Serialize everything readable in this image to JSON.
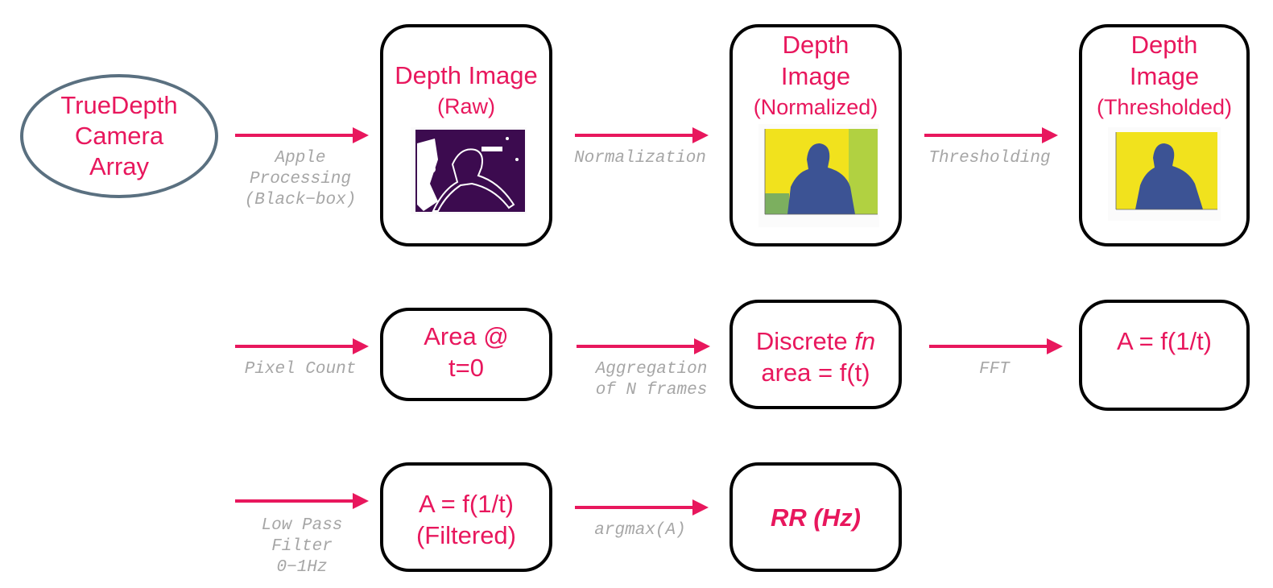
{
  "source": {
    "lines": [
      "TrueDepth",
      "Camera",
      "Array"
    ]
  },
  "nodes": {
    "depth_raw": {
      "lines": [
        "Depth Image",
        "(Raw)"
      ]
    },
    "depth_norm": {
      "lines": [
        "Depth",
        "Image",
        "(Normalized)"
      ]
    },
    "depth_thresh": {
      "lines": [
        "Depth",
        "Image",
        "(Thresholded)"
      ]
    },
    "area_t0": {
      "lines": [
        "Area @",
        "t=0"
      ]
    },
    "discrete_fn": {
      "line1_prefix": "Discrete ",
      "line1_italic": "fn",
      "line2": "area = f(t)"
    },
    "freq_a": {
      "lines": [
        "A = f(1/t)"
      ]
    },
    "freq_filtered": {
      "lines": [
        "A = f(1/t)",
        "(Filtered)"
      ]
    },
    "rr": {
      "lines": [
        "RR (Hz)"
      ]
    }
  },
  "edges": {
    "apple": [
      "Apple",
      "Processing",
      "(Black−box)"
    ],
    "normalization": [
      "Normalization"
    ],
    "thresholding": [
      "Thresholding"
    ],
    "pixel_count": [
      "Pixel Count"
    ],
    "aggregation": [
      "Aggregation",
      "of N frames"
    ],
    "fft": [
      "FFT"
    ],
    "low_pass": [
      "Low Pass",
      "Filter",
      "0−1Hz"
    ],
    "argmax": [
      "argmax(A)"
    ]
  },
  "colors": {
    "node_text": "#e8175d",
    "arrow": "#e8175d",
    "edge_label": "#a6a6a6",
    "ellipse_border": "#5a7080",
    "raw_depth": "#3c0b4f",
    "norm_background": "#f1e21d",
    "norm_subject": "#3c5394"
  }
}
